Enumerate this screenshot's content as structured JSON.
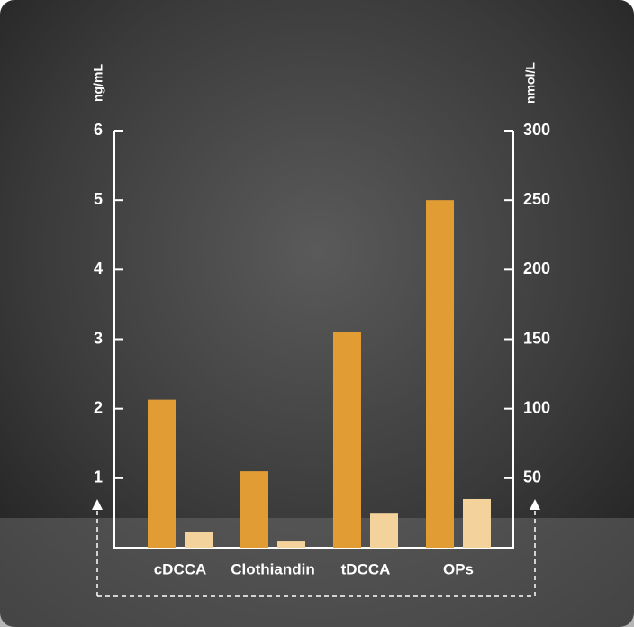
{
  "chart_data": {
    "type": "bar",
    "y_label": "ng/mL",
    "y2_label": "nmol/L",
    "categories": [
      "cDCCA",
      "Clothiandin",
      "tDCCA",
      "OPs"
    ],
    "series": [
      {
        "color": "#e19c34",
        "values": [
          2.13,
          1.1,
          3.1,
          5.0
        ]
      },
      {
        "color": "#f3d29c",
        "values": [
          0.23,
          0.09,
          0.49,
          0.7
        ]
      }
    ],
    "ylim": [
      0,
      6
    ],
    "yticks": [
      1,
      2,
      3,
      4,
      5,
      6
    ],
    "y2lim": [
      0,
      300
    ],
    "y2ticks": [
      50,
      100,
      150,
      200,
      250,
      300
    ]
  }
}
